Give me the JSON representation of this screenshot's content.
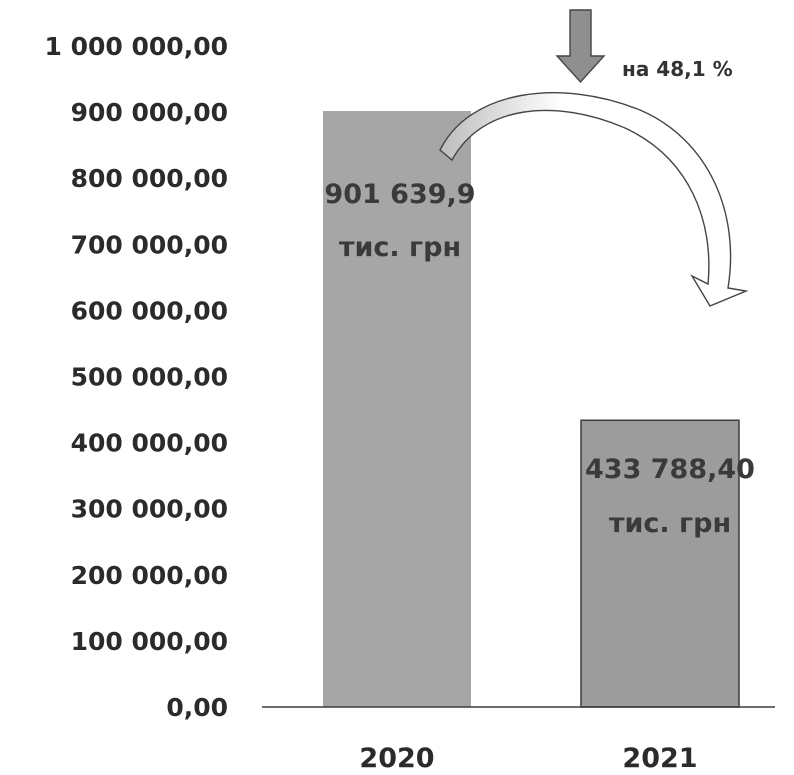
{
  "chart_data": {
    "type": "bar",
    "categories": [
      "2020",
      "2021"
    ],
    "values": [
      901639.9,
      433788.4
    ],
    "data_labels": [
      [
        "901 639,9",
        "тис. грн"
      ],
      [
        "433 788,40",
        "тис. грн"
      ]
    ],
    "y_ticks": [
      "0,00",
      "100 000,00",
      "200 000,00",
      "300 000,00",
      "400 000,00",
      "500 000,00",
      "600 000,00",
      "700 000,00",
      "800 000,00",
      "900 000,00",
      "1 000 000,00"
    ],
    "ylim": [
      0,
      1000000
    ],
    "annotation": "на 48,1 %",
    "grid": false,
    "legend": "none",
    "colors": {
      "bar_2020": "#a6a6a6",
      "bar_2021": "#9c9c9c",
      "bar_edge": "#3c3c3c",
      "text": "#2b2b2b",
      "arrow_fill": "#8f8f8f",
      "curved_arrow_fill": "#ffffff"
    }
  }
}
